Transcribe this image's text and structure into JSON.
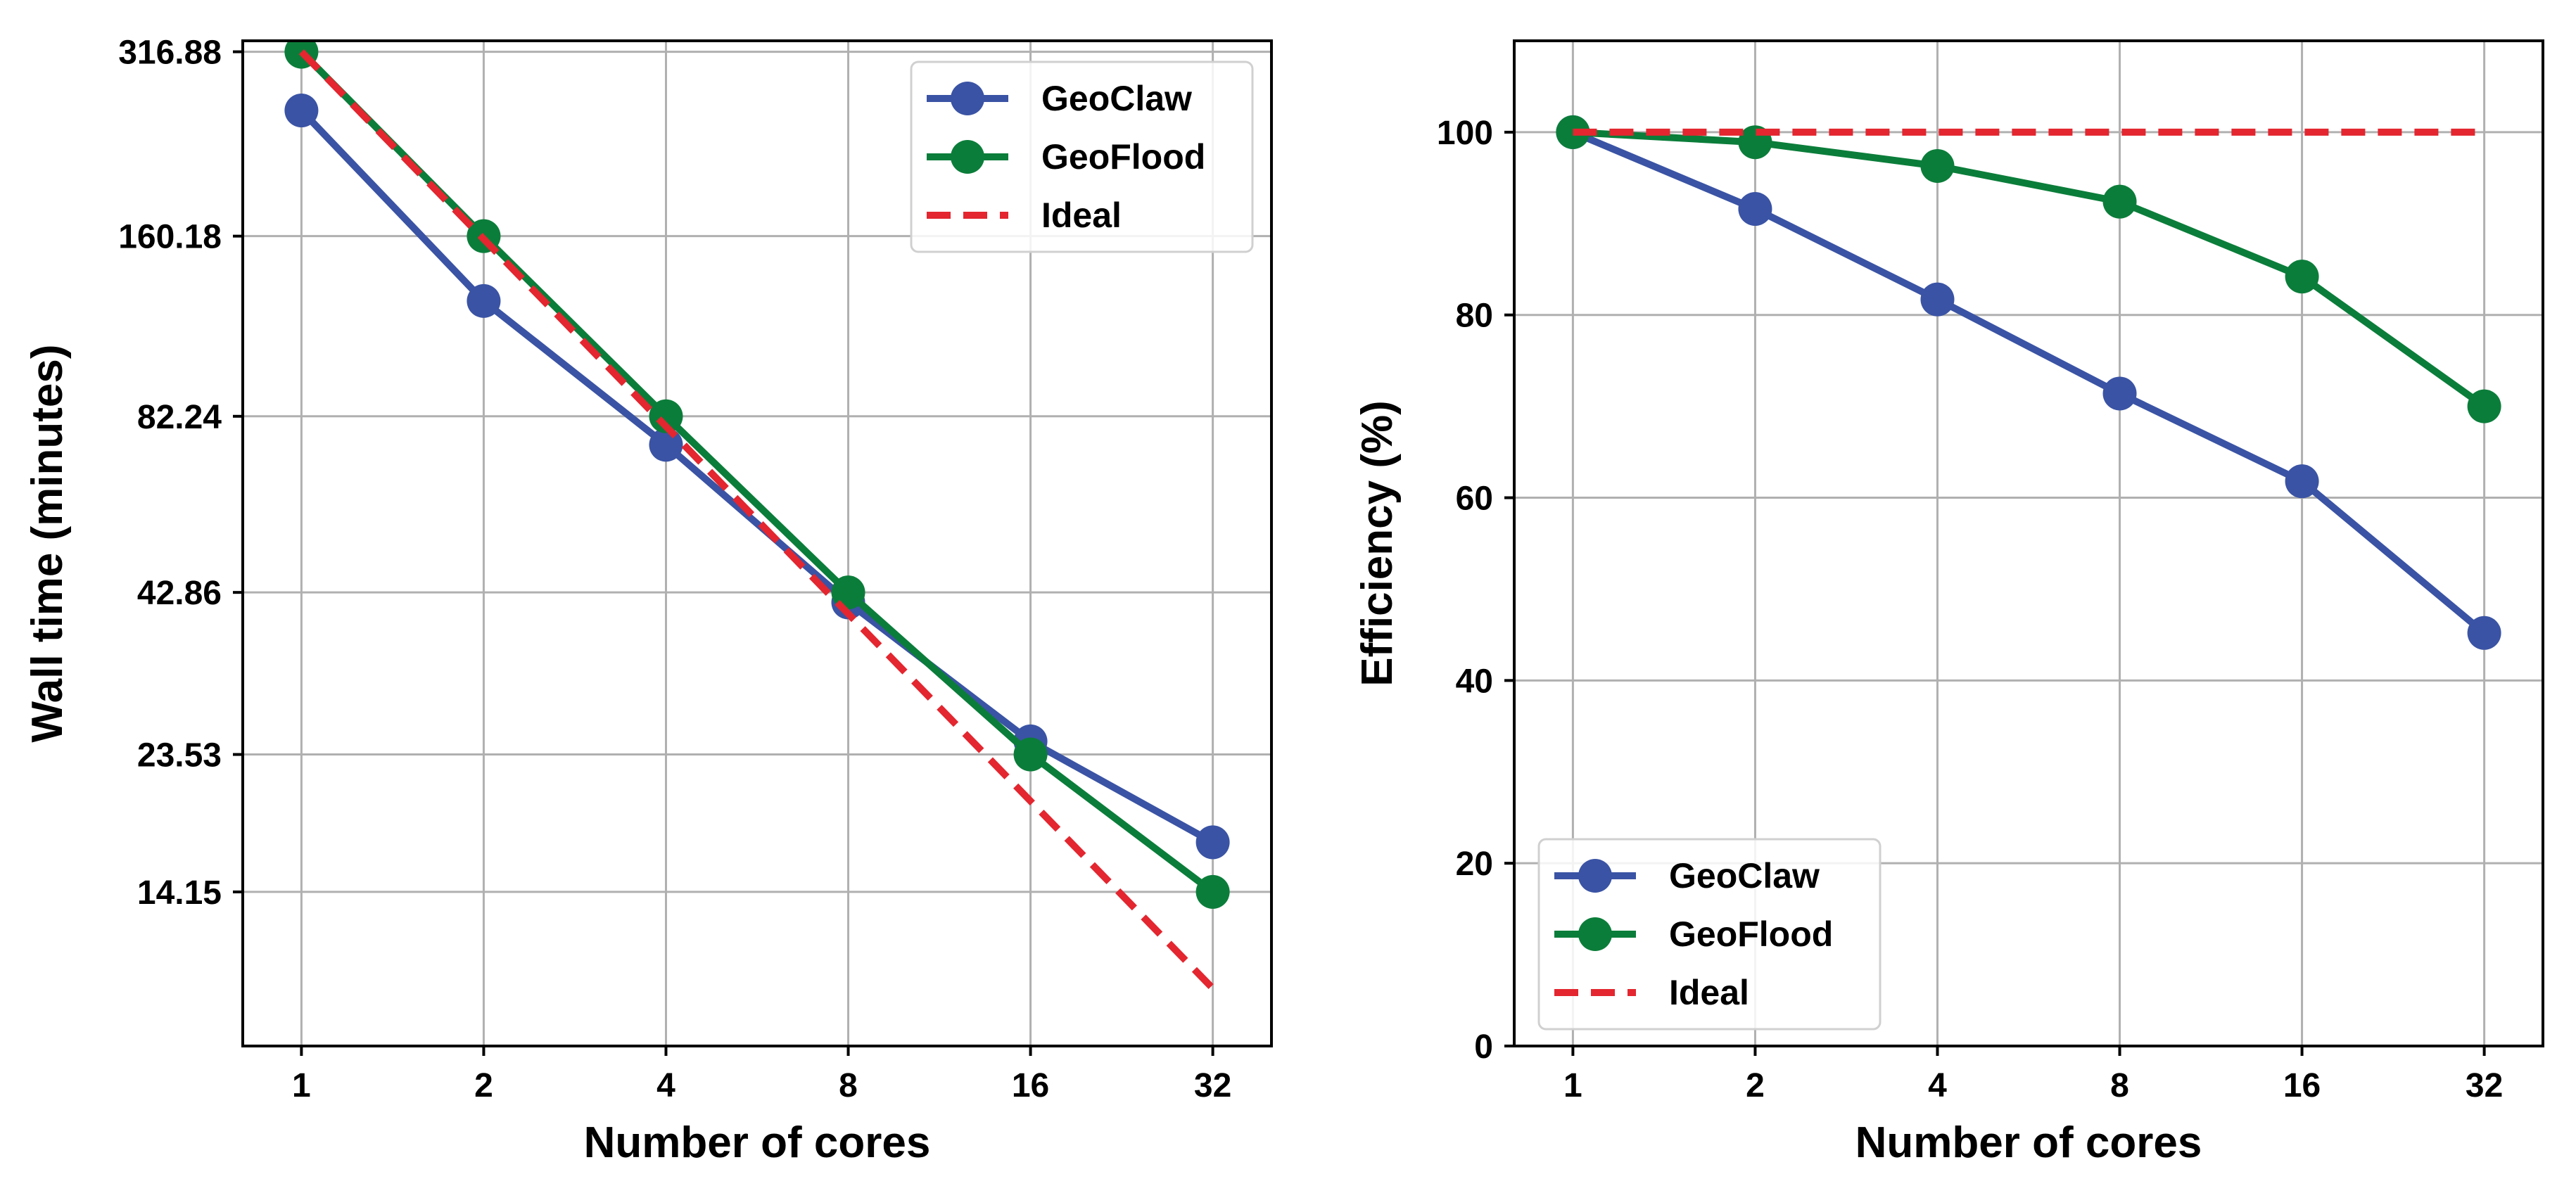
{
  "colors": {
    "geoclaw": "#3a53a4",
    "geoflood": "#0b7d3a",
    "ideal": "#e3262f",
    "grid": "#b0b0b0"
  },
  "chart_data": [
    {
      "type": "line",
      "xscale": "log2",
      "yscale": "log",
      "xlabel": "Number of cores",
      "ylabel": "Wall time (minutes)",
      "categories": [
        "1",
        "2",
        "4",
        "8",
        "16",
        "32"
      ],
      "x": [
        1,
        2,
        4,
        8,
        16,
        32
      ],
      "yticks": [
        14.15,
        23.53,
        42.86,
        82.24,
        160.18,
        316.88
      ],
      "ytick_labels": [
        "14.15",
        "23.53",
        "42.86",
        "82.24",
        "160.18",
        "316.88"
      ],
      "ylim": [
        8.0,
        330.0
      ],
      "xlim": [
        0.8,
        40.0
      ],
      "grid": true,
      "legend": "top-right",
      "series": [
        {
          "name": "GeoClaw",
          "style": "solid-marker",
          "color_key": "geoclaw",
          "values": [
            255.0,
            126.0,
            74.0,
            41.3,
            24.7,
            17.0
          ]
        },
        {
          "name": "GeoFlood",
          "style": "solid-marker",
          "color_key": "geoflood",
          "values": [
            316.88,
            160.18,
            82.24,
            42.86,
            23.53,
            14.15
          ]
        },
        {
          "name": "Ideal",
          "style": "dashed",
          "color_key": "ideal",
          "values": [
            316.88,
            158.44,
            79.22,
            39.61,
            19.8,
            9.9
          ]
        }
      ]
    },
    {
      "type": "line",
      "xscale": "log2",
      "yscale": "linear",
      "xlabel": "Number of cores",
      "ylabel": "Efficiency (%)",
      "categories": [
        "1",
        "2",
        "4",
        "8",
        "16",
        "32"
      ],
      "x": [
        1,
        2,
        4,
        8,
        16,
        32
      ],
      "yticks": [
        0,
        20,
        40,
        60,
        80,
        100
      ],
      "ytick_labels": [
        "0",
        "20",
        "40",
        "60",
        "80",
        "100"
      ],
      "ylim": [
        0,
        110
      ],
      "xlim": [
        0.8,
        40.0
      ],
      "grid": true,
      "legend": "bottom-left",
      "series": [
        {
          "name": "GeoClaw",
          "style": "solid-marker",
          "color_key": "geoclaw",
          "values": [
            100,
            91.6,
            81.7,
            71.4,
            61.8,
            45.2
          ]
        },
        {
          "name": "GeoFlood",
          "style": "solid-marker",
          "color_key": "geoflood",
          "values": [
            100,
            98.9,
            96.3,
            92.4,
            84.2,
            70.0
          ]
        },
        {
          "name": "Ideal",
          "style": "dashed",
          "color_key": "ideal",
          "values": [
            100,
            100,
            100,
            100,
            100,
            100
          ]
        }
      ]
    }
  ]
}
